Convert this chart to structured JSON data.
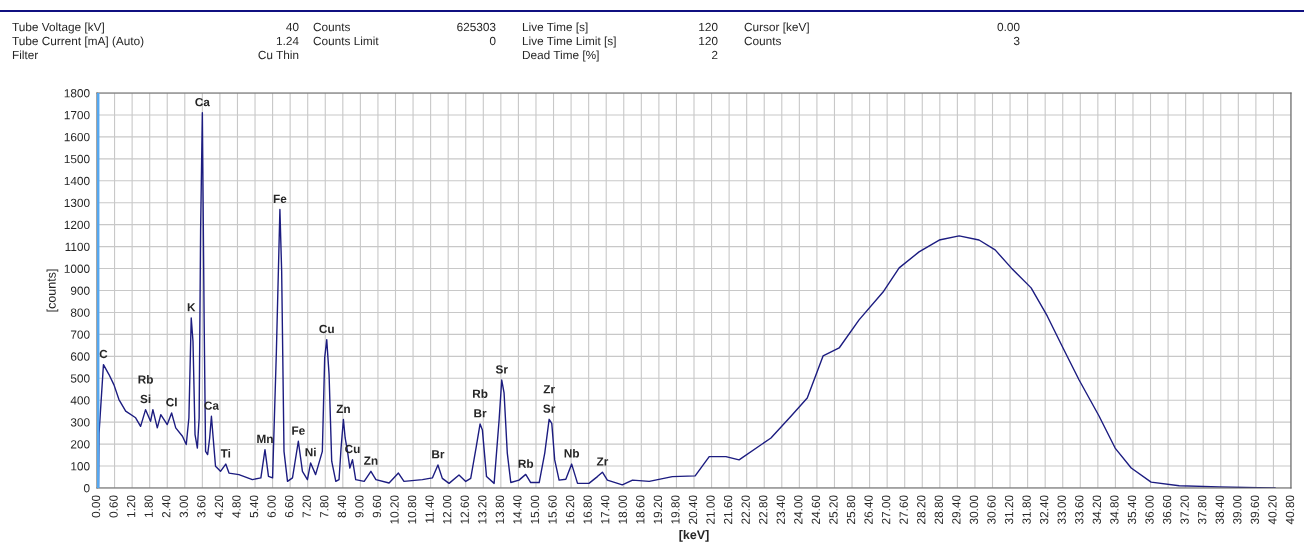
{
  "chart_data": {
    "type": "line",
    "xlabel": "[keV]",
    "ylabel": "[counts]",
    "x": [
      0,
      0.05,
      0.07,
      0.22,
      0.41,
      0.58,
      0.75,
      0.98,
      1.32,
      1.49,
      1.66,
      1.83,
      1.91,
      2.06,
      2.18,
      2.4,
      2.55,
      2.69,
      2.92,
      3.05,
      3.14,
      3.22,
      3.28,
      3.35,
      3.43,
      3.49,
      3.54,
      3.6,
      3.66,
      3.71,
      3.78,
      3.85,
      3.91,
      3.97,
      4.05,
      4.22,
      4.4,
      4.51,
      4.85,
      5.31,
      5.6,
      5.74,
      5.86,
      6.0,
      6.13,
      6.25,
      6.31,
      6.39,
      6.51,
      6.68,
      6.88,
      7.02,
      7.19,
      7.3,
      7.47,
      7.7,
      7.78,
      7.85,
      7.93,
      8.02,
      8.16,
      8.27,
      8.34,
      8.42,
      8.48,
      8.56,
      8.64,
      8.73,
      8.84,
      9.13,
      9.36,
      9.53,
      9.98,
      10.3,
      10.49,
      11.12,
      11.46,
      11.65,
      11.8,
      12.03,
      12.37,
      12.6,
      12.77,
      12.96,
      13.09,
      13.17,
      13.31,
      13.57,
      13.74,
      13.83,
      13.91,
      14.02,
      14.14,
      14.42,
      14.65,
      14.82,
      15.11,
      15.3,
      15.45,
      15.54,
      15.64,
      15.79,
      16.02,
      16.22,
      16.42,
      16.81,
      17.1,
      17.27,
      17.44,
      17.95,
      18.3,
      18.87,
      19.66,
      20.44,
      20.92,
      21.49,
      21.94,
      23.03,
      23.72,
      24.27,
      24.81,
      25.36,
      26.04,
      26.86,
      27.41,
      28.09,
      28.78,
      29.46,
      30.14,
      30.69,
      31.24,
      31.92,
      32.47,
      33.01,
      33.56,
      34.24,
      34.79,
      35.34,
      36.02,
      36.98,
      38.35,
      40.26
    ],
    "series": [
      {
        "color": "#1c1c80",
        "values": [
          0,
          0,
          250,
          562,
          517,
          470,
          403,
          350,
          320,
          281,
          357,
          304,
          357,
          274,
          334,
          289,
          342,
          274,
          236,
          198,
          319,
          775,
          669,
          243,
          182,
          319,
          1170,
          1710,
          775,
          167,
          152,
          228,
          327,
          228,
          99,
          76,
          109,
          68,
          61,
          38,
          46,
          175,
          53,
          46,
          623,
          1269,
          988,
          167,
          30,
          46,
          213,
          76,
          38,
          114,
          61,
          167,
          593,
          676,
          517,
          122,
          30,
          38,
          182,
          312,
          228,
          167,
          91,
          129,
          38,
          30,
          76,
          38,
          23,
          68,
          30,
          38,
          46,
          105,
          44,
          21,
          59,
          30,
          44,
          188,
          292,
          264,
          52,
          21,
          310,
          492,
          433,
          159,
          25,
          36,
          62,
          25,
          25,
          159,
          313,
          295,
          128,
          36,
          40,
          109,
          21,
          21,
          52,
          72,
          36,
          14,
          36,
          30,
          52,
          55,
          143,
          143,
          128,
          228,
          328,
          410,
          602,
          638,
          766,
          893,
          1003,
          1076,
          1130,
          1149,
          1130,
          1085,
          1003,
          912,
          784,
          638,
          492,
          328,
          182,
          91,
          27,
          10,
          5,
          0
        ]
      }
    ],
    "xlim": [
      0,
      40.8
    ],
    "ylim": [
      0,
      1800
    ],
    "xticks": [
      {
        "value": 0,
        "label": "0.00"
      },
      {
        "value": 0.6,
        "label": "0.60"
      },
      {
        "value": 1.2,
        "label": "1.20"
      },
      {
        "value": 1.8,
        "label": "1.80"
      },
      {
        "value": 2.4,
        "label": "2.40"
      },
      {
        "value": 3.0,
        "label": "3.00"
      },
      {
        "value": 3.6,
        "label": "3.60"
      },
      {
        "value": 4.2,
        "label": "4.20"
      },
      {
        "value": 4.8,
        "label": "4.80"
      },
      {
        "value": 5.4,
        "label": "5.40"
      },
      {
        "value": 6.0,
        "label": "6.00"
      },
      {
        "value": 6.6,
        "label": "6.60"
      },
      {
        "value": 7.2,
        "label": "7.20"
      },
      {
        "value": 7.8,
        "label": "7.80"
      },
      {
        "value": 8.4,
        "label": "8.40"
      },
      {
        "value": 9.0,
        "label": "9.00"
      },
      {
        "value": 9.6,
        "label": "9.60"
      },
      {
        "value": 10.2,
        "label": "10.20"
      },
      {
        "value": 10.8,
        "label": "10.80"
      },
      {
        "value": 11.4,
        "label": "11.40"
      },
      {
        "value": 12.0,
        "label": "12.00"
      },
      {
        "value": 12.6,
        "label": "12.60"
      },
      {
        "value": 13.2,
        "label": "13.20"
      },
      {
        "value": 13.8,
        "label": "13.80"
      },
      {
        "value": 14.4,
        "label": "14.40"
      },
      {
        "value": 15.0,
        "label": "15.00"
      },
      {
        "value": 15.6,
        "label": "15.60"
      },
      {
        "value": 16.2,
        "label": "16.20"
      },
      {
        "value": 16.8,
        "label": "16.80"
      },
      {
        "value": 17.4,
        "label": "17.40"
      },
      {
        "value": 18.0,
        "label": "18.00"
      },
      {
        "value": 18.6,
        "label": "18.60"
      },
      {
        "value": 19.2,
        "label": "19.20"
      },
      {
        "value": 19.8,
        "label": "19.80"
      },
      {
        "value": 20.4,
        "label": "20.40"
      },
      {
        "value": 21.0,
        "label": "21.00"
      },
      {
        "value": 21.6,
        "label": "21.60"
      },
      {
        "value": 22.2,
        "label": "22.20"
      },
      {
        "value": 22.8,
        "label": "22.80"
      },
      {
        "value": 23.4,
        "label": "23.40"
      },
      {
        "value": 24.0,
        "label": "24.00"
      },
      {
        "value": 24.6,
        "label": "24.60"
      },
      {
        "value": 25.2,
        "label": "25.20"
      },
      {
        "value": 25.8,
        "label": "25.80"
      },
      {
        "value": 26.4,
        "label": "26.40"
      },
      {
        "value": 27.0,
        "label": "27.00"
      },
      {
        "value": 27.6,
        "label": "27.60"
      },
      {
        "value": 28.2,
        "label": "28.20"
      },
      {
        "value": 28.8,
        "label": "28.80"
      },
      {
        "value": 29.4,
        "label": "29.40"
      },
      {
        "value": 30.0,
        "label": "30.00"
      },
      {
        "value": 30.6,
        "label": "30.60"
      },
      {
        "value": 31.2,
        "label": "31.20"
      },
      {
        "value": 31.8,
        "label": "31.80"
      },
      {
        "value": 32.4,
        "label": "32.40"
      },
      {
        "value": 33.0,
        "label": "33.00"
      },
      {
        "value": 33.6,
        "label": "33.60"
      },
      {
        "value": 34.2,
        "label": "34.20"
      },
      {
        "value": 34.8,
        "label": "34.80"
      },
      {
        "value": 35.4,
        "label": "35.40"
      },
      {
        "value": 36.0,
        "label": "36.00"
      },
      {
        "value": 36.6,
        "label": "36.60"
      },
      {
        "value": 37.2,
        "label": "37.20"
      },
      {
        "value": 37.8,
        "label": "37.80"
      },
      {
        "value": 38.4,
        "label": "38.40"
      },
      {
        "value": 39.0,
        "label": "39.00"
      },
      {
        "value": 39.6,
        "label": "39.60"
      },
      {
        "value": 40.2,
        "label": "40.20"
      },
      {
        "value": 40.8,
        "label": "40.80"
      }
    ],
    "yticks": [
      0,
      100,
      200,
      300,
      400,
      500,
      600,
      700,
      800,
      900,
      1000,
      1100,
      1200,
      1300,
      1400,
      1500,
      1600,
      1700,
      1800
    ],
    "grid": true,
    "marker": "none",
    "line_style": "solid",
    "ref_lines": [
      {
        "axis": "x",
        "value": 0,
        "color": "#55a8f0"
      }
    ],
    "annotations": [
      "Tube Voltage [kV]",
      "40",
      "Counts",
      "625303",
      "Live Time [s]",
      "120",
      "Cursor [keV]",
      "0.00",
      "Tube Current [mA] (Auto)",
      "1.24",
      "Counts Limit",
      "0",
      "Live Time Limit [s]",
      "120",
      "Counts",
      "3",
      "Filter",
      "Cu Thin",
      "Dead Time [%]",
      "2",
      {
        "text": "C",
        "x": 0.22,
        "y": 562
      },
      {
        "text": "Si",
        "x": 1.66,
        "y": 357
      },
      {
        "text": "Rb",
        "x": 1.66,
        "y": 357
      },
      {
        "text": "Cl",
        "x": 2.55,
        "y": 342
      },
      {
        "text": "K",
        "x": 3.22,
        "y": 775
      },
      {
        "text": "Ca",
        "x": 3.6,
        "y": 1710
      },
      {
        "text": "Ca",
        "x": 3.91,
        "y": 327
      },
      {
        "text": "Ti",
        "x": 4.4,
        "y": 109
      },
      {
        "text": "Mn",
        "x": 5.74,
        "y": 175
      },
      {
        "text": "Fe",
        "x": 6.25,
        "y": 1269
      },
      {
        "text": "Fe",
        "x": 6.88,
        "y": 213
      },
      {
        "text": "Ni",
        "x": 7.3,
        "y": 114
      },
      {
        "text": "Cu",
        "x": 7.85,
        "y": 676
      },
      {
        "text": "Zn",
        "x": 8.42,
        "y": 312
      },
      {
        "text": "Cu",
        "x": 8.73,
        "y": 129
      },
      {
        "text": "Zn",
        "x": 9.36,
        "y": 76
      },
      {
        "text": "Br",
        "x": 11.65,
        "y": 105
      },
      {
        "text": "Br",
        "x": 13.09,
        "y": 292
      },
      {
        "text": "Rb",
        "x": 13.09,
        "y": 292
      },
      {
        "text": "Sr",
        "x": 13.83,
        "y": 492
      },
      {
        "text": "Rb",
        "x": 14.65,
        "y": 62
      },
      {
        "text": "Sr",
        "x": 15.45,
        "y": 313
      },
      {
        "text": "Zr",
        "x": 15.45,
        "y": 313
      },
      {
        "text": "Nb",
        "x": 16.22,
        "y": 109
      },
      {
        "text": "Zr",
        "x": 17.27,
        "y": 72
      }
    ]
  }
}
